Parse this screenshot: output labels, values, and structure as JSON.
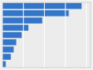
{
  "chart_data": {
    "type": "bar",
    "orientation": "horizontal",
    "categories": [
      null,
      null,
      null,
      null,
      null,
      null,
      null,
      null,
      null
    ],
    "values": [
      188.5,
      158.0,
      95.0,
      62.0,
      46.0,
      33.0,
      27.0,
      20.0,
      8.0
    ],
    "color": "#3375c8",
    "xlim": [
      0,
      210
    ],
    "xticks": [
      0,
      50,
      100,
      150,
      200
    ],
    "grid": true,
    "tick_labels": false
  }
}
